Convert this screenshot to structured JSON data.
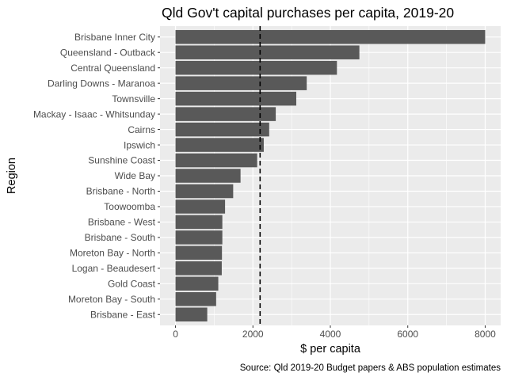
{
  "chart_data": {
    "type": "bar",
    "orientation": "horizontal",
    "title": "Qld Gov't capital purchases per capita, 2019-20",
    "xlabel": "$ per capita",
    "ylabel": "Region",
    "caption": "Source: Qld 2019-20 Budget papers & ABS population estimates",
    "categories": [
      "Brisbane Inner City",
      "Queensland - Outback",
      "Central Queensland",
      "Darling Downs - Maranoa",
      "Townsville",
      "Mackay - Isaac - Whitsunday",
      "Cairns",
      "Ipswich",
      "Sunshine Coast",
      "Wide Bay",
      "Brisbane - North",
      "Toowoomba",
      "Brisbane - West",
      "Brisbane - South",
      "Moreton Bay - North",
      "Logan - Beaudesert",
      "Gold Coast",
      "Moreton Bay - South",
      "Brisbane - East"
    ],
    "values": [
      8000,
      4750,
      4170,
      3390,
      3120,
      2590,
      2420,
      2280,
      2110,
      1680,
      1490,
      1280,
      1210,
      1210,
      1200,
      1195,
      1105,
      1050,
      820
    ],
    "reference_line": {
      "value": 2185,
      "style": "dashed"
    },
    "xlim": [
      -400,
      8400
    ],
    "xticks": [
      0,
      2000,
      4000,
      6000,
      8000
    ],
    "xtick_labels": [
      "0",
      "2000",
      "4000",
      "6000",
      "8000"
    ],
    "grid": true,
    "colors": {
      "bar": "#595959",
      "panel": "#EBEBEB",
      "grid": "#FFFFFF",
      "reference_line": "#000000"
    }
  }
}
